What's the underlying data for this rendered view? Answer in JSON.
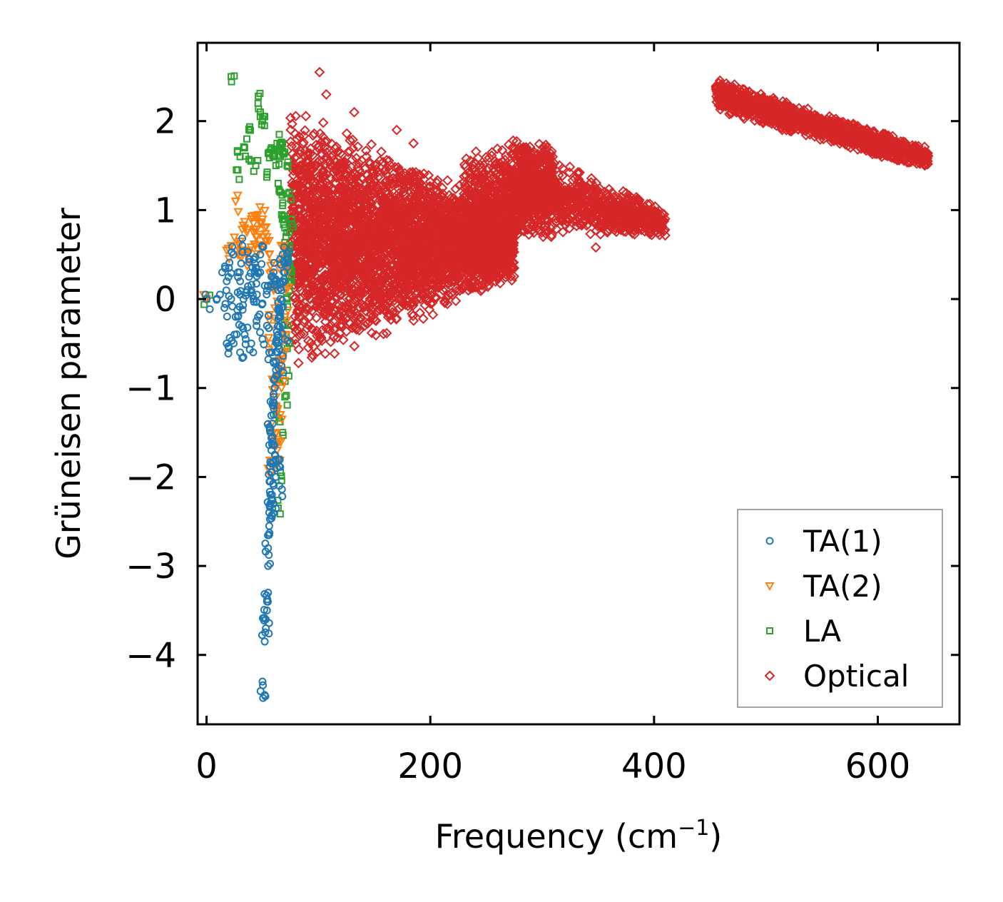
{
  "chart_data": {
    "type": "scatter",
    "title": "",
    "xlabel": "Frequency (cm",
    "xlabel_sup": "−1",
    "xlabel_close": ")",
    "ylabel": "Grüneisen parameter",
    "xlim": [
      -8,
      673
    ],
    "ylim": [
      -4.78,
      2.88
    ],
    "xticks": [
      0,
      200,
      400,
      600
    ],
    "xtick_labels": [
      "0",
      "200",
      "400",
      "600"
    ],
    "yticks": [
      -4,
      -3,
      -2,
      -1,
      0,
      1,
      2
    ],
    "ytick_labels": [
      "−4",
      "−3",
      "−2",
      "−1",
      "0",
      "1",
      "2"
    ],
    "grid": false,
    "legend_position": "bottom-right",
    "series": [
      {
        "name": "TA(1)",
        "marker": "circle",
        "color": "#1f77b4",
        "x": [
          0,
          12,
          14,
          16,
          18,
          20,
          22,
          24,
          26,
          28,
          30,
          32,
          34,
          36,
          38,
          40,
          42,
          44,
          46,
          48,
          50,
          50,
          52,
          52,
          53,
          53,
          54,
          54,
          55,
          55,
          55,
          56,
          56,
          56,
          57,
          57,
          57,
          58,
          58,
          58,
          59,
          59,
          60,
          60,
          60,
          61,
          61,
          62,
          62,
          63,
          63,
          64,
          64,
          65,
          65,
          66,
          67,
          68,
          69,
          70,
          20,
          30,
          40,
          45,
          50,
          55,
          58,
          60,
          62,
          64,
          66,
          68,
          70,
          72,
          28,
          33,
          38,
          43,
          48,
          35,
          25,
          18,
          30,
          46,
          52,
          54,
          57,
          59,
          61,
          63,
          65,
          67,
          56,
          58,
          60,
          62,
          64,
          66,
          68,
          70
        ],
        "y": [
          0.0,
          0.05,
          0.3,
          -0.1,
          0.2,
          -0.55,
          0.0,
          0.5,
          -0.2,
          0.3,
          -0.6,
          0.6,
          -0.4,
          0.1,
          0.45,
          -0.5,
          0.0,
          0.35,
          -0.2,
          0.5,
          -0.45,
          -4.3,
          -3.85,
          -4.45,
          -3.7,
          -3.6,
          -3.5,
          -3.4,
          -3.3,
          -3.0,
          -2.8,
          -2.65,
          -2.55,
          -2.4,
          -2.3,
          -2.2,
          -2.05,
          -1.95,
          -1.85,
          -1.7,
          -1.55,
          -1.4,
          -1.3,
          -1.2,
          -1.1,
          -1.0,
          -0.9,
          -0.8,
          -0.7,
          -0.6,
          -0.5,
          -0.4,
          -0.3,
          -0.2,
          -0.1,
          0.0,
          0.1,
          0.2,
          0.3,
          0.4,
          0.35,
          0.2,
          0.1,
          0.05,
          -0.05,
          0.15,
          0.25,
          0.3,
          0.2,
          0.1,
          -0.15,
          -0.3,
          -0.45,
          0.45,
          -0.2,
          0.0,
          0.25,
          0.4,
          0.3,
          -0.45,
          -0.4,
          -0.5,
          0.05,
          0.3,
          0.15,
          -0.3,
          -1.5,
          -1.6,
          -1.75,
          -1.9,
          -2.1,
          -0.75,
          -0.6,
          -2.25,
          -2.3,
          -2.0,
          -1.8,
          -0.2,
          0.5,
          0.3
        ]
      },
      {
        "name": "TA(2)",
        "marker": "triangle-down",
        "color": "#ff7f0e",
        "x": [
          0,
          18,
          22,
          26,
          28,
          30,
          34,
          36,
          38,
          40,
          42,
          44,
          46,
          48,
          50,
          52,
          54,
          56,
          58,
          60,
          60,
          62,
          62,
          63,
          64,
          65,
          66,
          67,
          68,
          69,
          70,
          71,
          72,
          57,
          59,
          61,
          63,
          65,
          67,
          69,
          45,
          49,
          53,
          32,
          38,
          55,
          58,
          62,
          66,
          70
        ],
        "y": [
          0.0,
          0.55,
          0.6,
          1.1,
          0.5,
          0.65,
          0.8,
          0.75,
          0.55,
          0.9,
          0.85,
          0.7,
          0.95,
          0.6,
          0.9,
          0.8,
          0.7,
          0.5,
          0.3,
          0.1,
          -0.9,
          -1.2,
          -1.5,
          -1.7,
          -1.8,
          -1.6,
          -1.3,
          -1.0,
          -0.7,
          -0.4,
          -0.2,
          0.1,
          0.3,
          -0.5,
          -0.3,
          -0.1,
          0.2,
          0.4,
          0.6,
          0.5,
          0.7,
          0.85,
          0.65,
          0.55,
          0.45,
          -1.9,
          -1.4,
          -1.1,
          -0.8,
          -0.6
        ]
      },
      {
        "name": "LA",
        "marker": "square",
        "color": "#2ca02c",
        "x": [
          0,
          22,
          28,
          30,
          34,
          36,
          38,
          40,
          44,
          46,
          48,
          50,
          52,
          54,
          56,
          58,
          60,
          62,
          63,
          64,
          65,
          66,
          67,
          68,
          69,
          70,
          71,
          72,
          73,
          74,
          75,
          76,
          64,
          66,
          68,
          70,
          72,
          74,
          70,
          72,
          74,
          76,
          66,
          68,
          70,
          72,
          74,
          76,
          62,
          64
        ],
        "y": [
          0.0,
          2.5,
          1.45,
          1.6,
          1.7,
          1.8,
          1.9,
          1.55,
          1.5,
          2.2,
          2.05,
          2.0,
          2.05,
          1.4,
          1.65,
          1.7,
          1.6,
          1.5,
          1.75,
          1.3,
          1.85,
          1.2,
          1.7,
          1.05,
          0.9,
          0.8,
          0.7,
          0.6,
          0.5,
          0.4,
          0.3,
          0.2,
          -2.35,
          -1.95,
          -1.5,
          -1.1,
          -0.8,
          -0.5,
          -0.2,
          0.0,
          0.1,
          0.25,
          1.6,
          1.75,
          1.65,
          1.5,
          1.2,
          0.9,
          -1.3,
          -0.9
        ]
      },
      {
        "name": "Optical",
        "marker": "diamond",
        "color": "#d62728",
        "clusters": [
          {
            "x": [
              75,
              275
            ],
            "ymin": [
              -0.85,
              0.2
            ],
            "ymax": [
              2.2,
              1.0
            ],
            "count": 3800
          },
          {
            "x": [
              230,
              310
            ],
            "ymin": [
              0.2,
              0.9
            ],
            "ymax": [
              1.7,
              1.8
            ],
            "count": 900
          },
          {
            "x": [
              270,
              410
            ],
            "ymin": [
              0.65,
              0.7
            ],
            "ymax": [
              1.9,
              1.0
            ],
            "count": 900
          },
          {
            "x": [
              455,
              645
            ],
            "ymin": [
              2.1,
              1.45
            ],
            "ymax": [
              2.5,
              1.7
            ],
            "count": 1400
          }
        ],
        "outliers": [
          {
            "x": 101,
            "y": 2.55
          },
          {
            "x": 107,
            "y": 2.3
          },
          {
            "x": 132,
            "y": 2.1
          },
          {
            "x": 348,
            "y": 0.58
          },
          {
            "x": 170,
            "y": 1.9
          },
          {
            "x": 185,
            "y": 1.75
          },
          {
            "x": 258,
            "y": 1.55
          },
          {
            "x": 290,
            "y": 1.6
          }
        ]
      }
    ]
  }
}
